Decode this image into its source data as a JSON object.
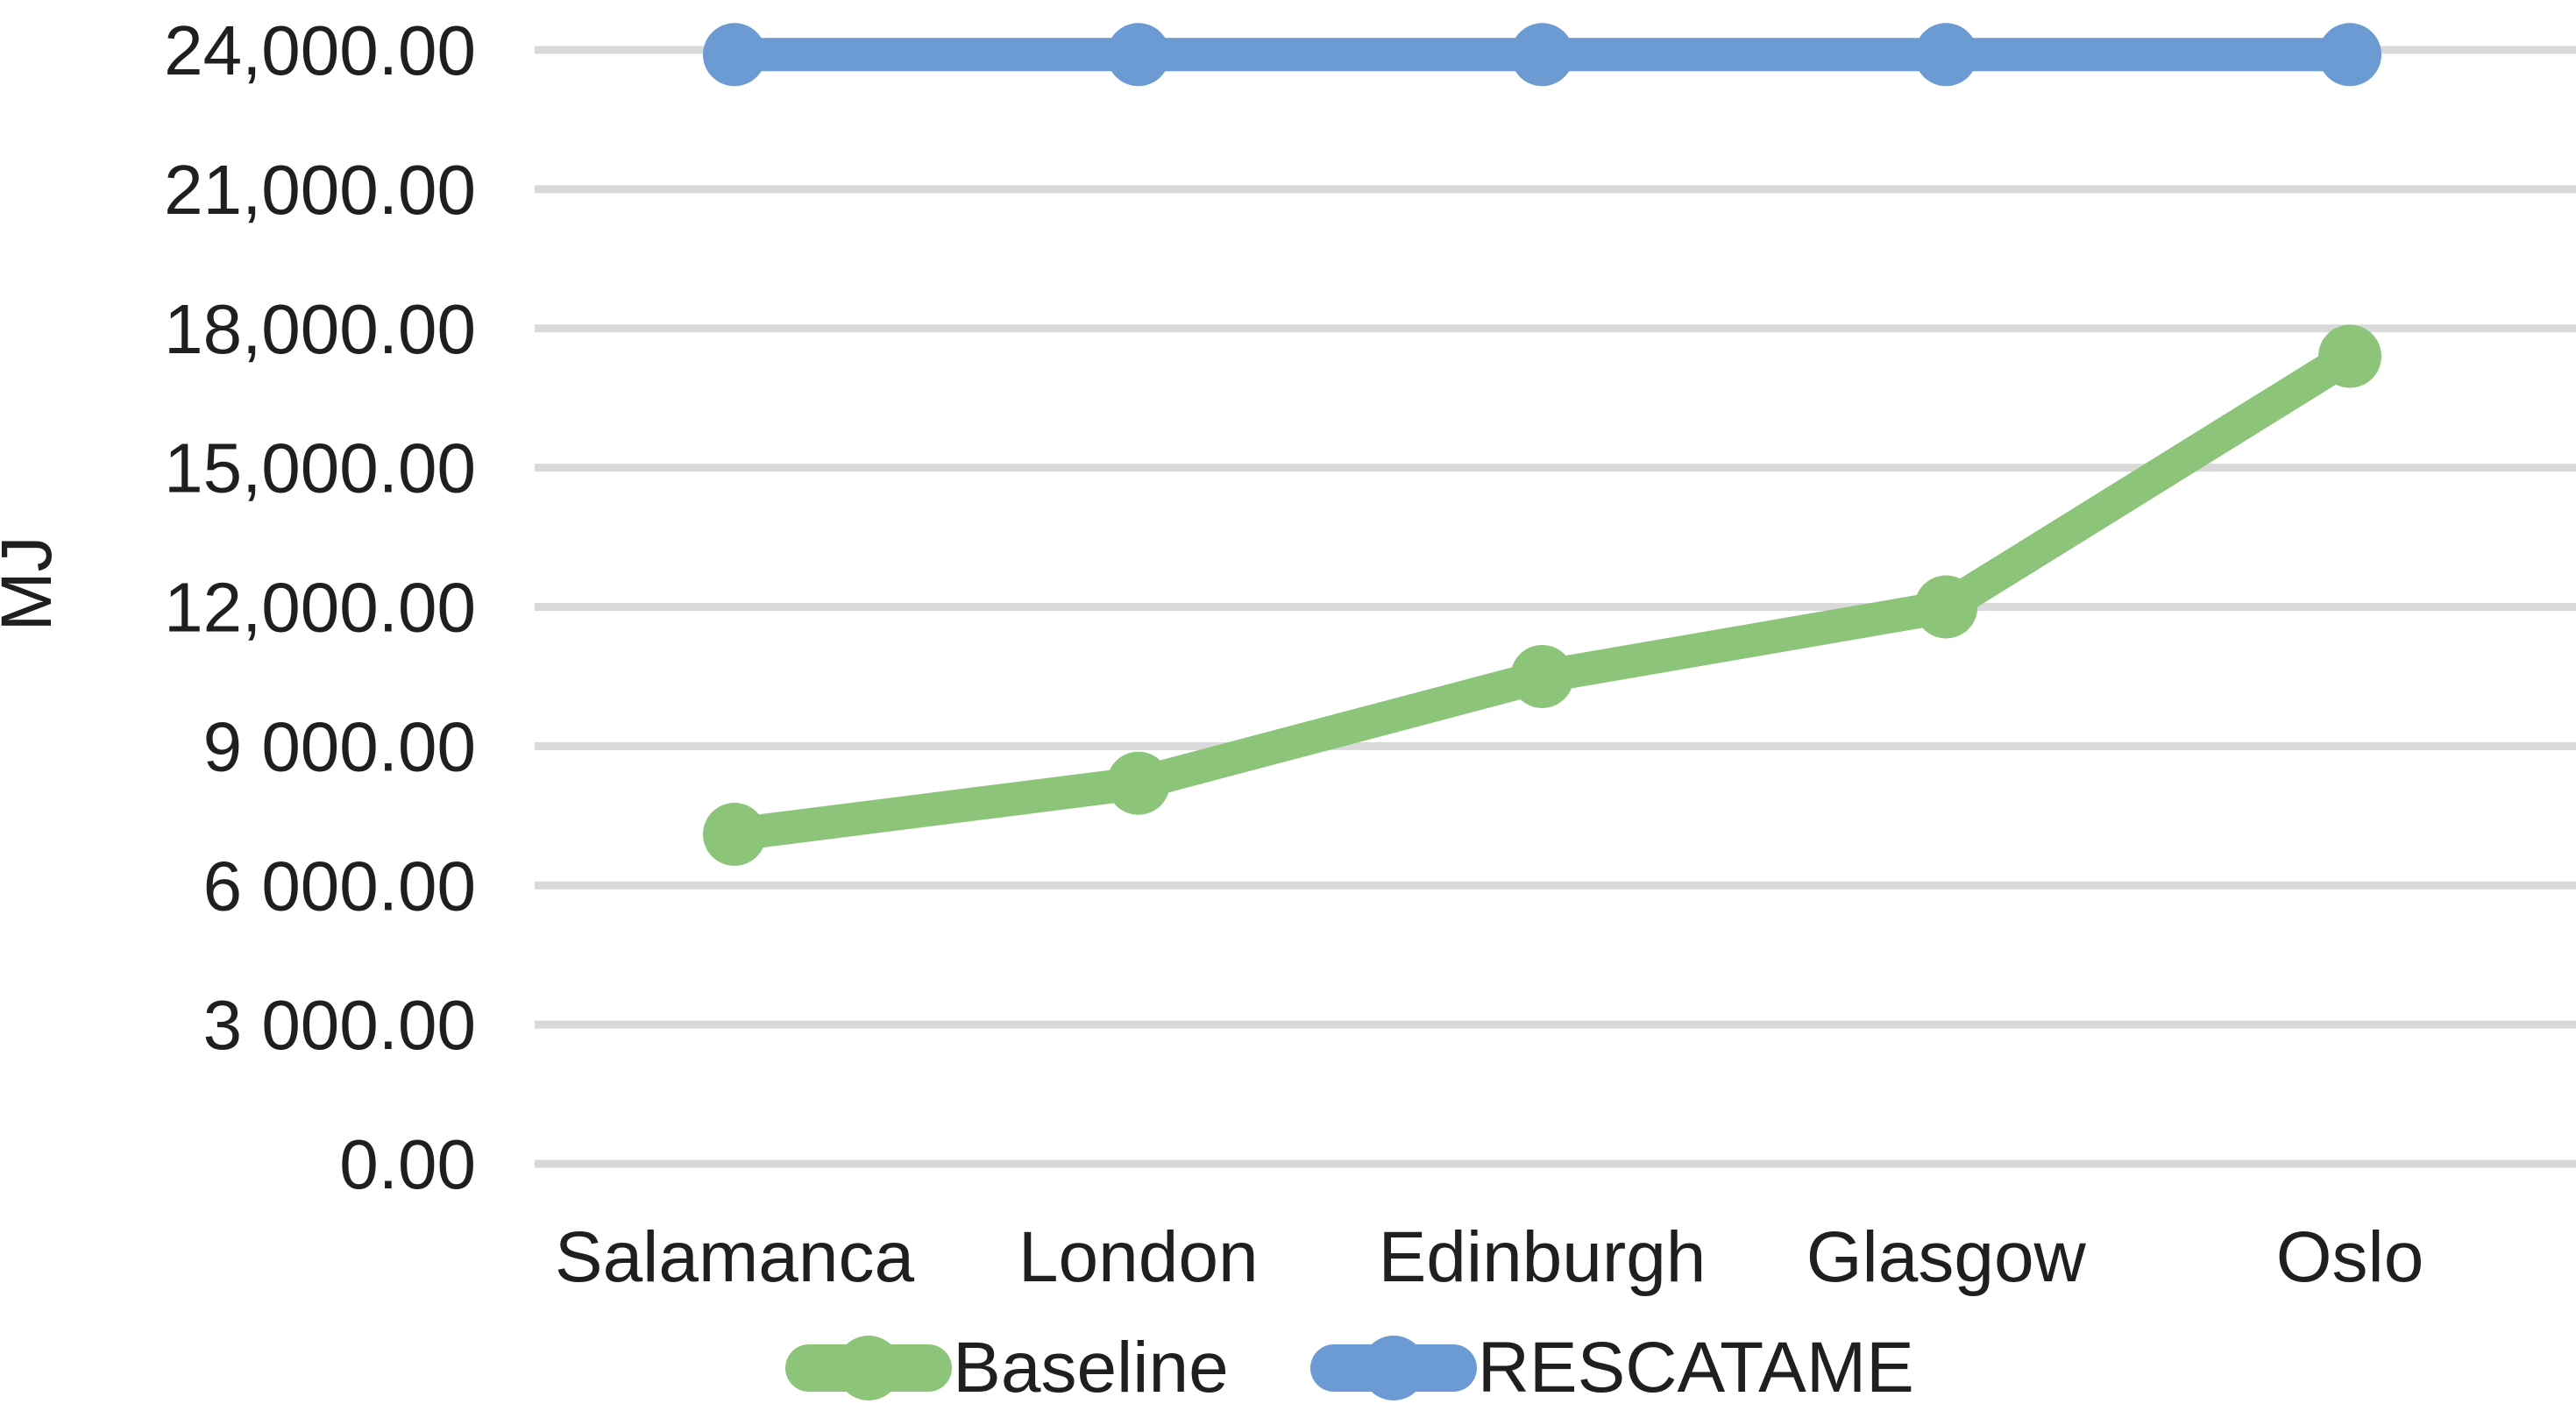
{
  "chart_data": {
    "type": "line",
    "categories": [
      "Salamanca",
      "London",
      "Edinburgh",
      "Glasgow",
      "Oslo"
    ],
    "series": [
      {
        "name": "Baseline",
        "color": "#8cc47a",
        "values": [
          7100,
          8200,
          10500,
          12000,
          17400
        ]
      },
      {
        "name": "RESCATAME",
        "color": "#6b9bd2",
        "values": [
          23900,
          23900,
          23900,
          23900,
          23900
        ]
      }
    ],
    "title": "",
    "xlabel": "",
    "ylabel": "MJ",
    "ylim": [
      0,
      24000
    ],
    "ytick_step": 3000,
    "ytick_labels": [
      "0.00",
      "3 000.00",
      "6 000.00",
      "9 000.00",
      "12,000.00",
      "15,000.00",
      "18,000.00",
      "21,000.00",
      "24,000.00"
    ],
    "grid": true,
    "gridline_color": "#d9d9d9",
    "text_color": "#1f1f1f",
    "legend_position": "bottom",
    "marker": "circle"
  }
}
